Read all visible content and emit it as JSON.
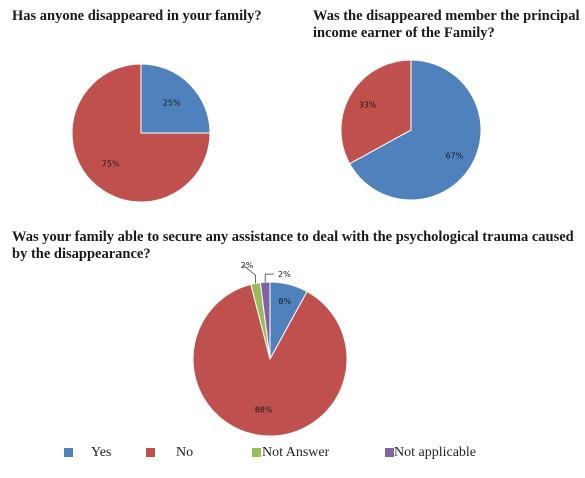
{
  "chart_data": [
    {
      "type": "pie",
      "title": "Has anyone disappeared in your family?",
      "categories": [
        "Yes",
        "No"
      ],
      "values": [
        25,
        75
      ],
      "labels": [
        "25%",
        "75%"
      ],
      "colors": [
        "#4f81bd",
        "#c0504d"
      ]
    },
    {
      "type": "pie",
      "title": "Was the disappeared member the principal income earner of the Family?",
      "categories": [
        "Yes",
        "No"
      ],
      "values": [
        67,
        33
      ],
      "labels": [
        "67%",
        "33%"
      ],
      "colors": [
        "#4f81bd",
        "#c0504d"
      ]
    },
    {
      "type": "pie",
      "title": "Was your family able to secure any assistance to deal with the psychological trauma caused by the disappearance?",
      "categories": [
        "Yes",
        "No",
        "Not Answer",
        "Not applicable"
      ],
      "values": [
        8,
        88,
        2,
        2
      ],
      "labels": [
        "8%",
        "88%",
        "2%",
        "2%"
      ],
      "colors": [
        "#4f81bd",
        "#c0504d",
        "#9bbb59",
        "#8064a2"
      ]
    }
  ],
  "legend": {
    "placement": "bottom",
    "items": [
      {
        "label": "Yes",
        "color": "#4f81bd"
      },
      {
        "label": "No",
        "color": "#c0504d"
      },
      {
        "label": "Not Answer",
        "color": "#9bbb59"
      },
      {
        "label": "Not applicable",
        "color": "#8064a2"
      }
    ]
  }
}
